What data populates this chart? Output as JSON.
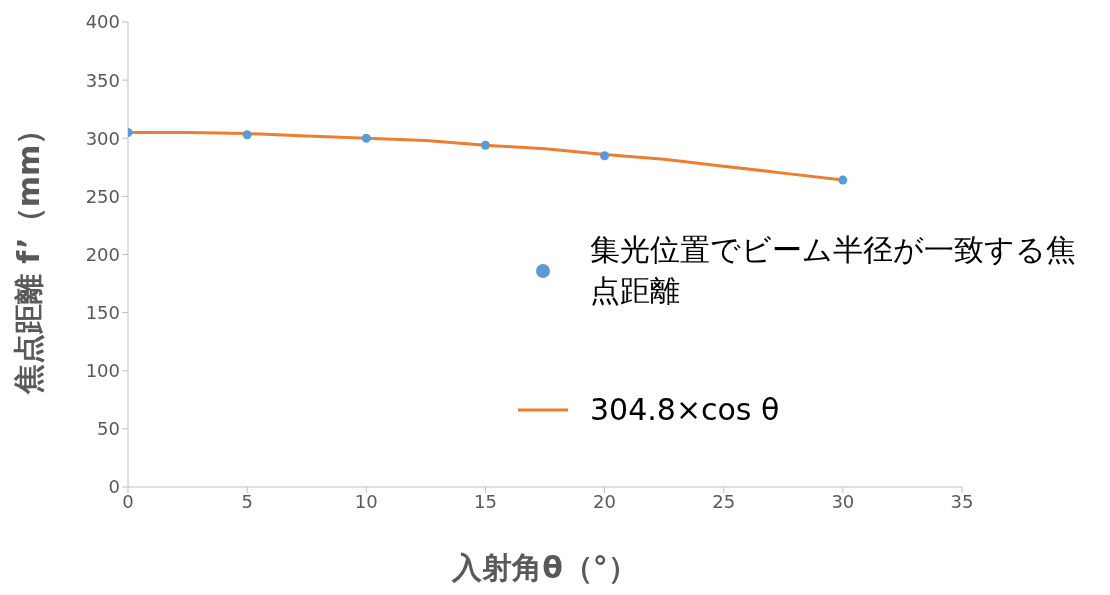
{
  "chart_data": {
    "type": "scatter",
    "xlabel": "入射角θ（°）",
    "ylabel": "焦点距離 f’（mm）",
    "xlim": [
      0,
      35
    ],
    "xticks": [
      0,
      5,
      10,
      15,
      20,
      25,
      30,
      35
    ],
    "ylim": [
      0,
      400
    ],
    "yticks": [
      0,
      50,
      100,
      150,
      200,
      250,
      300,
      350,
      400
    ],
    "legend": "right",
    "series": [
      {
        "name": "集光位置でビーム半径が一致する焦点距離",
        "marker": "circle",
        "color": "#5b9bd5",
        "x": [
          0,
          5,
          10,
          15,
          20,
          30
        ],
        "values": [
          305,
          303,
          300,
          294,
          285,
          264
        ]
      },
      {
        "name": "304.8×cos θ",
        "type": "line",
        "marker": "none",
        "line_style": "solid",
        "color": "#ed7d31",
        "x": [
          0,
          2.5,
          5,
          7.5,
          10,
          12.5,
          15,
          17.5,
          20,
          22.5,
          25,
          27.5,
          30
        ],
        "values": [
          305,
          305,
          304,
          302,
          300,
          298,
          294,
          291,
          286,
          282,
          276,
          270,
          264
        ]
      }
    ]
  }
}
